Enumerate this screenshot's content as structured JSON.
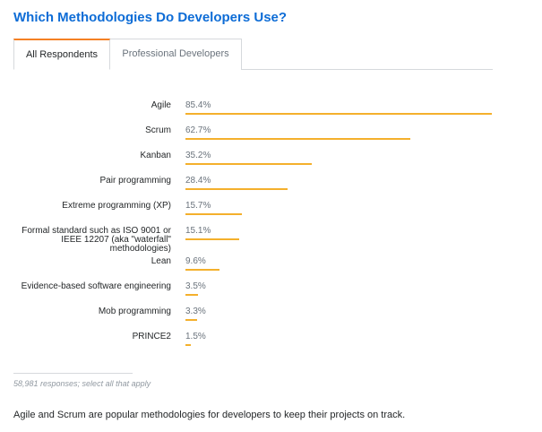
{
  "title": "Which Methodologies Do Developers Use?",
  "tabs": [
    {
      "label": "All Respondents",
      "active": true
    },
    {
      "label": "Professional Developers",
      "active": false
    }
  ],
  "accent_color": "#f4b02c",
  "title_color": "#0d6cd6",
  "chart_data": {
    "type": "bar",
    "orientation": "horizontal",
    "categories": [
      "Agile",
      "Scrum",
      "Kanban",
      "Pair programming",
      "Extreme programming (XP)",
      "Formal standard such as ISO 9001 or IEEE 12207 (aka \"waterfall\" methodologies)",
      "Lean",
      "Evidence-based software engineering",
      "Mob programming",
      "PRINCE2"
    ],
    "values": [
      85.4,
      62.7,
      35.2,
      28.4,
      15.7,
      15.1,
      9.6,
      3.5,
      3.3,
      1.5
    ],
    "value_labels": [
      "85.4%",
      "62.7%",
      "35.2%",
      "28.4%",
      "15.7%",
      "15.1%",
      "9.6%",
      "3.5%",
      "3.3%",
      "1.5%"
    ],
    "xlim": [
      0,
      85.4
    ],
    "grid": false
  },
  "footnote": "58,981 responses; select all that apply",
  "summary": "Agile and Scrum are popular methodologies for developers to keep their projects on track."
}
